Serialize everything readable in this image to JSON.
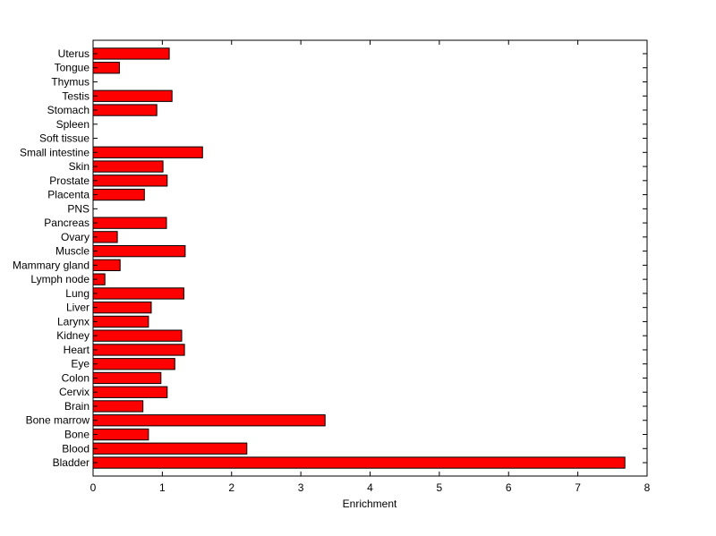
{
  "chart_data": {
    "type": "bar",
    "orientation": "horizontal",
    "title": "",
    "xlabel": "Enrichment",
    "ylabel": "",
    "xlim": [
      0,
      8
    ],
    "xticks": [
      0,
      1,
      2,
      3,
      4,
      5,
      6,
      7,
      8
    ],
    "grid": false,
    "bar_color": "#ff0000",
    "categories": [
      "Bladder",
      "Blood",
      "Bone",
      "Bone marrow",
      "Brain",
      "Cervix",
      "Colon",
      "Eye",
      "Heart",
      "Kidney",
      "Larynx",
      "Liver",
      "Lung",
      "Lymph node",
      "Mammary gland",
      "Muscle",
      "Ovary",
      "Pancreas",
      "PNS",
      "Placenta",
      "Prostate",
      "Skin",
      "Small intestine",
      "Soft tissue",
      "Spleen",
      "Stomach",
      "Testis",
      "Thymus",
      "Tongue",
      "Uterus"
    ],
    "values": [
      7.68,
      2.22,
      0.8,
      3.35,
      0.72,
      1.07,
      0.98,
      1.18,
      1.32,
      1.28,
      0.8,
      0.84,
      1.31,
      0.17,
      0.39,
      1.33,
      0.35,
      1.06,
      0,
      0.74,
      1.07,
      1.01,
      1.58,
      0,
      0,
      0.92,
      1.14,
      0,
      0.38,
      1.1
    ]
  }
}
